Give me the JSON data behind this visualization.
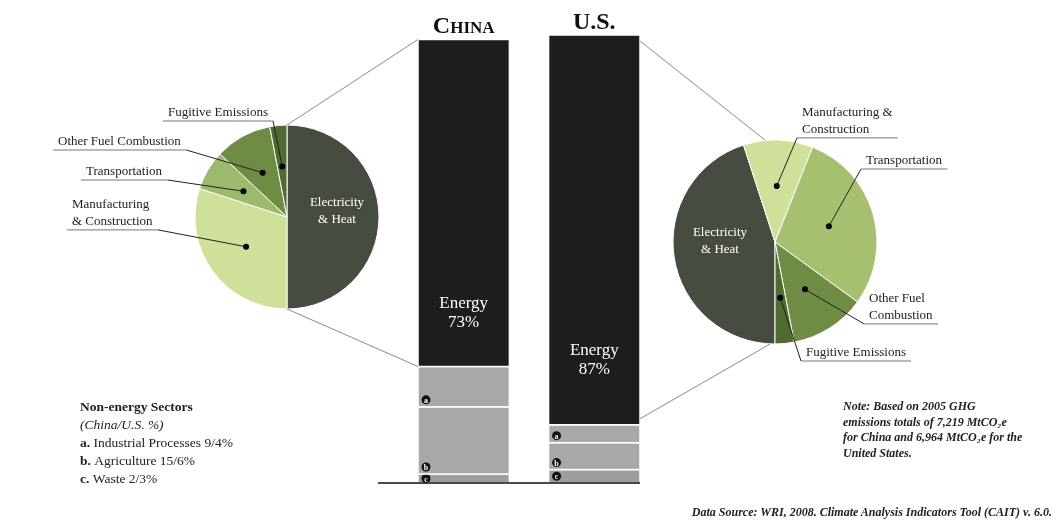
{
  "chart_data": [
    {
      "type": "pie",
      "categories": [
        "Electricity & Heat",
        "Manufacturing & Construction",
        "Transportation",
        "Other Fuel Combustion",
        "Fugitive Emissions"
      ],
      "values": [
        50,
        30,
        7,
        10,
        3
      ],
      "colors": [
        "#474c40",
        "#cfe09a",
        "#9cb96c",
        "#6e8c43",
        "#4f6b30"
      ]
    },
    {
      "type": "bar",
      "stacked": true,
      "categories": [
        "China",
        "U.S."
      ],
      "series": [
        {
          "name": "c",
          "color": "#9c9ea0",
          "values": [
            2,
            3
          ]
        },
        {
          "name": "b",
          "color": "#a6a8aa",
          "values": [
            15,
            6
          ]
        },
        {
          "name": "a",
          "color": "#a6a8aa",
          "values": [
            9,
            4
          ]
        },
        {
          "name": "Energy",
          "color": "#1e1c1d",
          "values": [
            73,
            87
          ],
          "value_labels": [
            "73%",
            "87%"
          ]
        }
      ],
      "annotations": [
        "Non-energy Sectors",
        "(China/U.S. %)",
        "a. Industrial Processes 9/4%",
        "b. Agriculture 15/6%",
        "c. Waste 2/3%",
        "Note: Based on 2005 GHG emissions totals of 7,219 MtCO₂e for China and 6,964 MtCO₂e for the United States.",
        "Data Source: WRI, 2008. Climate Analysis Indicators Tool (CAIT) v. 6.0."
      ]
    },
    {
      "type": "pie",
      "categories": [
        "Electricity & Heat",
        "Manufacturing & Construction",
        "Transportation",
        "Other Fuel Combustion",
        "Fugitive Emissions"
      ],
      "values": [
        45,
        11,
        29,
        12,
        3
      ],
      "colors": [
        "#474c40",
        "#cfe09a",
        "#a7c070",
        "#6e8c43",
        "#4f6b30"
      ]
    }
  ]
}
